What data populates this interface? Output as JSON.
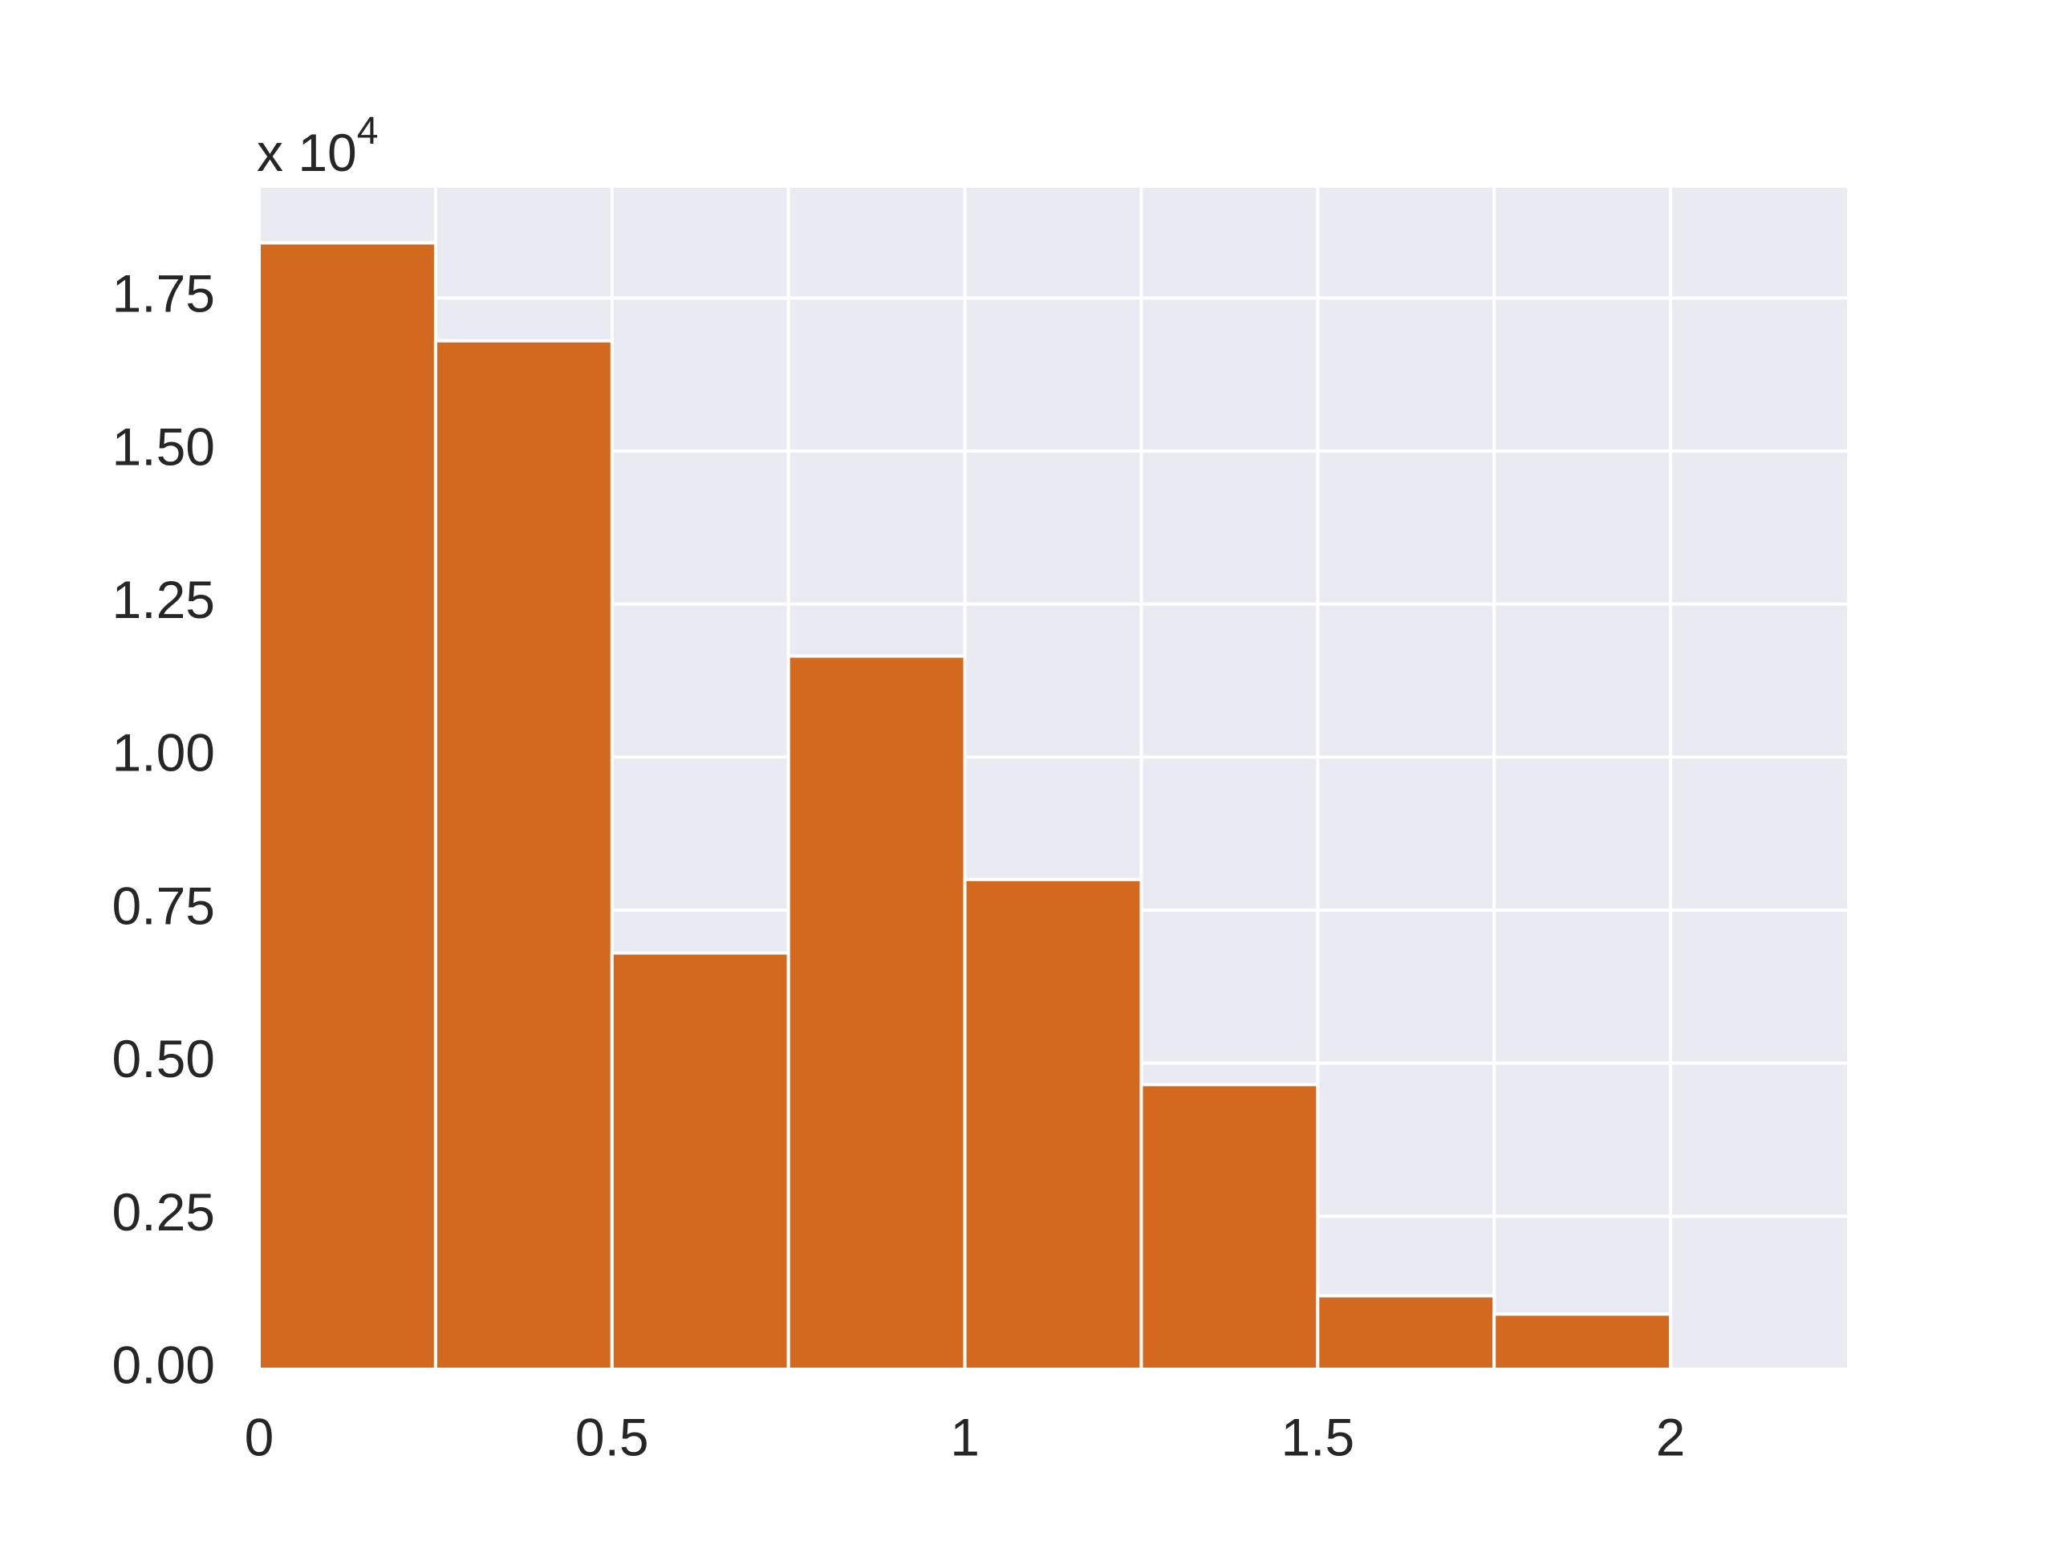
{
  "chart_data": {
    "type": "histogram",
    "bins": [
      0,
      0.25,
      0.5,
      0.75,
      1,
      1.25,
      1.5,
      1.75,
      2
    ],
    "values": [
      1.84,
      1.68,
      0.68,
      1.165,
      0.8,
      0.465,
      0.12,
      0.09
    ],
    "color": "#d2691e",
    "y_multiplier": {
      "base": "x 10",
      "exponent": "4"
    },
    "xlim": [
      0,
      2.25
    ],
    "xticks": [
      0,
      0.5,
      1,
      1.5,
      2
    ],
    "xminorticks": [
      0.25,
      0.75,
      1.25,
      1.75
    ],
    "ylim": [
      0,
      1.93
    ],
    "yticks": [
      {
        "value": 0,
        "label": "0.00"
      },
      0.25,
      {
        "value": 0.5,
        "label": "0.50"
      },
      0.75,
      {
        "value": 1,
        "label": "1.00"
      },
      1.25,
      {
        "value": 1.5,
        "label": "1.50"
      },
      1.75
    ],
    "grid": true
  }
}
